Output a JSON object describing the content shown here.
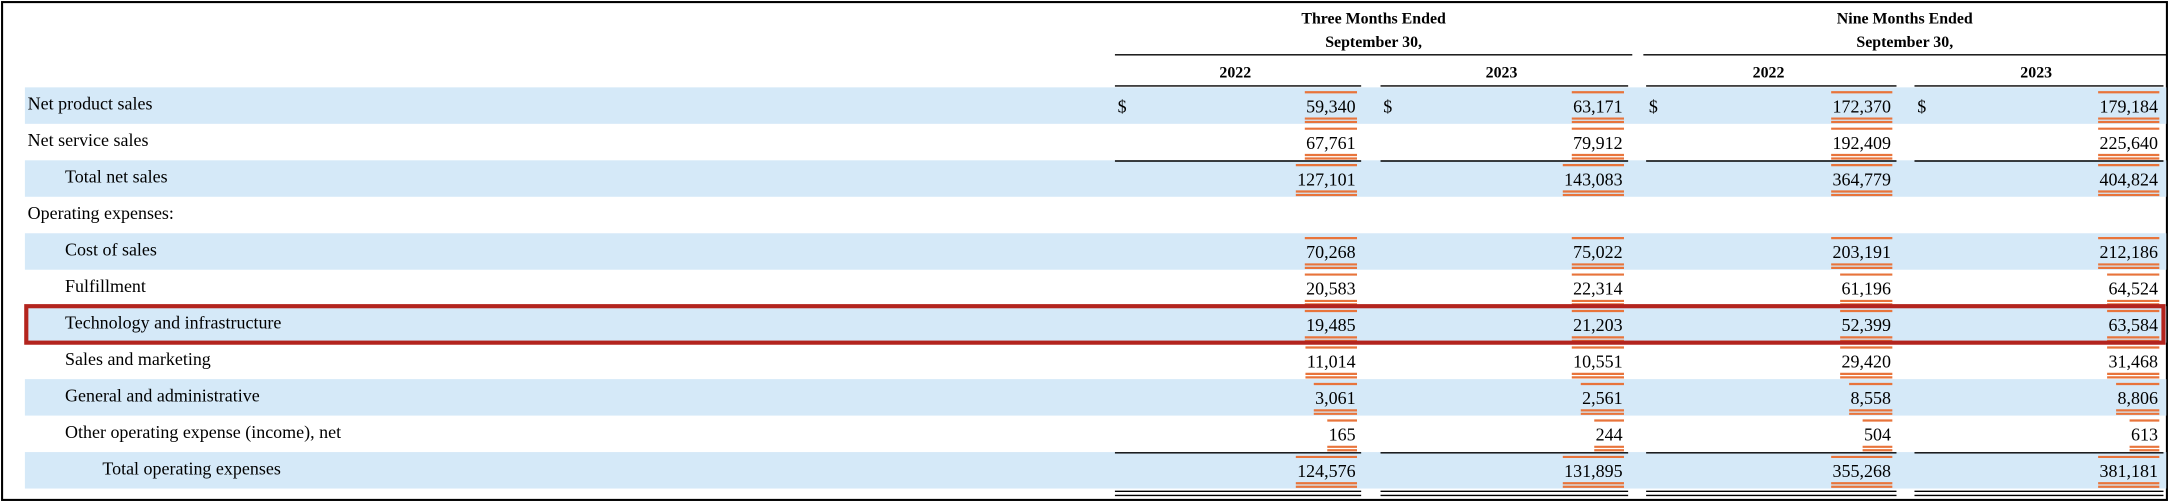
{
  "table": {
    "headers": [
      {
        "title": "Three Months Ended",
        "subtitle": "September 30,"
      },
      {
        "title": "Nine Months Ended",
        "subtitle": "September 30,"
      }
    ],
    "years": [
      "2022",
      "2023",
      "2022",
      "2023"
    ],
    "currency_symbol": "$",
    "rows": [
      {
        "label": "Net product sales",
        "values": [
          "59,340",
          "63,171",
          "172,370",
          "179,184"
        ]
      },
      {
        "label": "Net service sales",
        "values": [
          "67,761",
          "79,912",
          "192,409",
          "225,640"
        ]
      },
      {
        "label": "Total net sales",
        "values": [
          "127,101",
          "143,083",
          "364,779",
          "404,824"
        ]
      },
      {
        "label": "Operating expenses:",
        "values": []
      },
      {
        "label": "Cost of sales",
        "values": [
          "70,268",
          "75,022",
          "203,191",
          "212,186"
        ]
      },
      {
        "label": "Fulfillment",
        "values": [
          "20,583",
          "22,314",
          "61,196",
          "64,524"
        ]
      },
      {
        "label": "Technology and infrastructure",
        "values": [
          "19,485",
          "21,203",
          "52,399",
          "63,584"
        ]
      },
      {
        "label": "Sales and marketing",
        "values": [
          "11,014",
          "10,551",
          "29,420",
          "31,468"
        ]
      },
      {
        "label": "General and administrative",
        "values": [
          "3,061",
          "2,561",
          "8,558",
          "8,806"
        ]
      },
      {
        "label": "Other operating expense (income), net",
        "values": [
          "165",
          "244",
          "504",
          "613"
        ]
      },
      {
        "label": "Total operating expenses",
        "values": [
          "124,576",
          "131,895",
          "355,268",
          "381,181"
        ]
      }
    ]
  }
}
